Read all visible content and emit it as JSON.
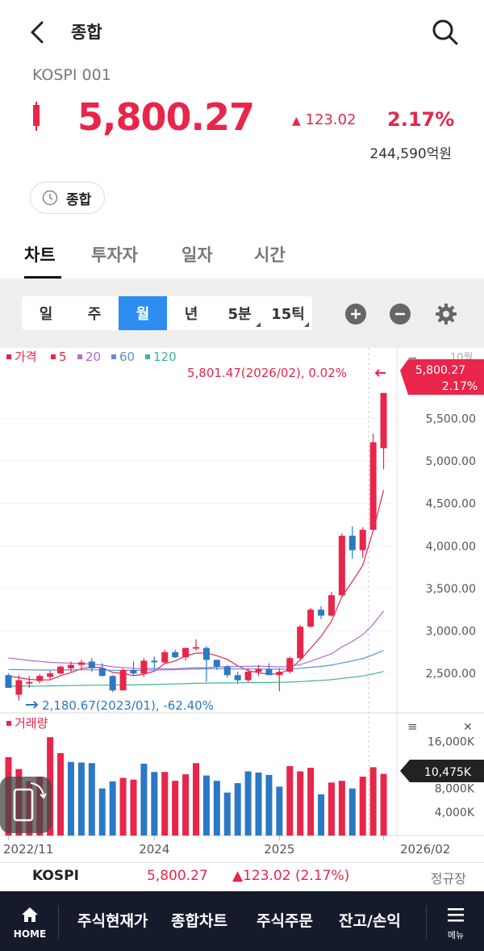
{
  "header": {
    "title": "종합",
    "code": "KOSPI 001",
    "price": "5,800.27",
    "change": "123.02",
    "change_symbol": "▲",
    "change_pct": "2.17%",
    "trade_amount": "244,590억원",
    "market_chip": "종합"
  },
  "tabs": [
    {
      "label": "차트",
      "active": true
    },
    {
      "label": "투자자",
      "active": false
    },
    {
      "label": "일자",
      "active": false
    },
    {
      "label": "시간",
      "active": false
    }
  ],
  "periods": [
    {
      "label": "일",
      "active": false
    },
    {
      "label": "주",
      "active": false
    },
    {
      "label": "월",
      "active": true
    },
    {
      "label": "년",
      "active": false
    },
    {
      "label": "5분",
      "active": false
    },
    {
      "label": "15틱",
      "active": false
    }
  ],
  "legend": [
    {
      "label": "가격",
      "color": "#e8254a"
    },
    {
      "label": "5",
      "color": "#e8254a"
    },
    {
      "label": "20",
      "color": "#b36ad6"
    },
    {
      "label": "60",
      "color": "#5b8fd6"
    },
    {
      "label": "120",
      "color": "#3fb39a"
    }
  ],
  "annotations": {
    "high": "5,801.47(2026/02), 0.02%",
    "low": "2,180.67(2023/01), -62.40%",
    "current_tag_price": "5,800.27",
    "current_tag_pct": "2.17%",
    "volume_label": "거래량",
    "volume_tag": "10,475K",
    "top_axis_partial": "10월"
  },
  "chart_data": {
    "type": "candlestick",
    "period": "monthly",
    "x_range": [
      "2022/11",
      "2026/02"
    ],
    "x_ticks": [
      "2022/11",
      "2024",
      "2025",
      "2026/02"
    ],
    "y_ticks": [
      "5,500.00",
      "5,000.00",
      "4,500.00",
      "4,000.00",
      "3,500.00",
      "3,000.00",
      "2,500.00"
    ],
    "ylim": [
      2150,
      5950
    ],
    "candles": [
      {
        "o": 2480,
        "h": 2500,
        "l": 2340,
        "c": 2330
      },
      {
        "o": 2250,
        "h": 2480,
        "l": 2180,
        "c": 2420
      },
      {
        "o": 2400,
        "h": 2470,
        "l": 2330,
        "c": 2400
      },
      {
        "o": 2410,
        "h": 2490,
        "l": 2380,
        "c": 2470
      },
      {
        "o": 2460,
        "h": 2530,
        "l": 2420,
        "c": 2500
      },
      {
        "o": 2500,
        "h": 2590,
        "l": 2490,
        "c": 2580
      },
      {
        "o": 2560,
        "h": 2640,
        "l": 2520,
        "c": 2600
      },
      {
        "o": 2600,
        "h": 2660,
        "l": 2560,
        "c": 2630
      },
      {
        "o": 2640,
        "h": 2680,
        "l": 2520,
        "c": 2560
      },
      {
        "o": 2560,
        "h": 2620,
        "l": 2460,
        "c": 2470
      },
      {
        "o": 2470,
        "h": 2480,
        "l": 2280,
        "c": 2300
      },
      {
        "o": 2300,
        "h": 2560,
        "l": 2300,
        "c": 2540
      },
      {
        "o": 2540,
        "h": 2640,
        "l": 2470,
        "c": 2500
      },
      {
        "o": 2500,
        "h": 2680,
        "l": 2460,
        "c": 2650
      },
      {
        "o": 2650,
        "h": 2700,
        "l": 2550,
        "c": 2640
      },
      {
        "o": 2630,
        "h": 2780,
        "l": 2620,
        "c": 2750
      },
      {
        "o": 2750,
        "h": 2780,
        "l": 2680,
        "c": 2690
      },
      {
        "o": 2690,
        "h": 2800,
        "l": 2650,
        "c": 2800
      },
      {
        "o": 2800,
        "h": 2900,
        "l": 2770,
        "c": 2810
      },
      {
        "o": 2800,
        "h": 2820,
        "l": 2400,
        "c": 2660
      },
      {
        "o": 2660,
        "h": 2660,
        "l": 2540,
        "c": 2580
      },
      {
        "o": 2580,
        "h": 2600,
        "l": 2450,
        "c": 2480
      },
      {
        "o": 2480,
        "h": 2520,
        "l": 2380,
        "c": 2420
      },
      {
        "o": 2420,
        "h": 2560,
        "l": 2400,
        "c": 2520
      },
      {
        "o": 2520,
        "h": 2600,
        "l": 2470,
        "c": 2550
      },
      {
        "o": 2550,
        "h": 2620,
        "l": 2480,
        "c": 2480
      },
      {
        "o": 2480,
        "h": 2560,
        "l": 2290,
        "c": 2520
      },
      {
        "o": 2520,
        "h": 2700,
        "l": 2500,
        "c": 2680
      },
      {
        "o": 2680,
        "h": 3070,
        "l": 2660,
        "c": 3050
      },
      {
        "o": 3050,
        "h": 3270,
        "l": 3040,
        "c": 3250
      },
      {
        "o": 3250,
        "h": 3290,
        "l": 3140,
        "c": 3180
      },
      {
        "o": 3180,
        "h": 3460,
        "l": 3170,
        "c": 3420
      },
      {
        "o": 3420,
        "h": 4150,
        "l": 3400,
        "c": 4120
      },
      {
        "o": 4120,
        "h": 4230,
        "l": 3850,
        "c": 3950
      },
      {
        "o": 3950,
        "h": 4220,
        "l": 3860,
        "c": 4190
      },
      {
        "o": 4190,
        "h": 5320,
        "l": 4190,
        "c": 5220
      },
      {
        "o": 5150,
        "h": 5801,
        "l": 4900,
        "c": 5800
      }
    ],
    "volume_ticks": [
      "16,000K",
      "12,000K",
      "8,000K",
      "4,000K"
    ],
    "volume_max": 17000,
    "volumes": [
      {
        "v": 13300,
        "up": true
      },
      {
        "v": 11300,
        "up": true
      },
      {
        "v": 9200,
        "up": true
      },
      {
        "v": 10000,
        "up": true
      },
      {
        "v": 16700,
        "up": true
      },
      {
        "v": 14000,
        "up": true
      },
      {
        "v": 12500,
        "up": false
      },
      {
        "v": 12400,
        "up": false
      },
      {
        "v": 12300,
        "up": false
      },
      {
        "v": 8000,
        "up": false
      },
      {
        "v": 9200,
        "up": false
      },
      {
        "v": 9800,
        "up": true
      },
      {
        "v": 9500,
        "up": true
      },
      {
        "v": 12200,
        "up": false
      },
      {
        "v": 10800,
        "up": false
      },
      {
        "v": 10800,
        "up": true
      },
      {
        "v": 9300,
        "up": true
      },
      {
        "v": 10400,
        "up": true
      },
      {
        "v": 12300,
        "up": true
      },
      {
        "v": 10200,
        "up": false
      },
      {
        "v": 9300,
        "up": false
      },
      {
        "v": 7300,
        "up": false
      },
      {
        "v": 8900,
        "up": false
      },
      {
        "v": 10900,
        "up": false
      },
      {
        "v": 10700,
        "up": false
      },
      {
        "v": 10300,
        "up": false
      },
      {
        "v": 8300,
        "up": false
      },
      {
        "v": 11800,
        "up": true
      },
      {
        "v": 10900,
        "up": true
      },
      {
        "v": 11500,
        "up": true
      },
      {
        "v": 7000,
        "up": false
      },
      {
        "v": 9000,
        "up": true
      },
      {
        "v": 9300,
        "up": true
      },
      {
        "v": 8000,
        "up": false
      },
      {
        "v": 10000,
        "up": true
      },
      {
        "v": 11600,
        "up": true
      },
      {
        "v": 10475,
        "up": true
      }
    ]
  },
  "summary": {
    "name": "KOSPI",
    "price": "5,800.27",
    "change": "▲123.02 (2.17%)",
    "status": "정규장"
  },
  "nav": {
    "home": "HOME",
    "items": [
      "주식현재가",
      "종합차트",
      "주식주문",
      "잔고/손익"
    ],
    "menu": "메뉴"
  }
}
